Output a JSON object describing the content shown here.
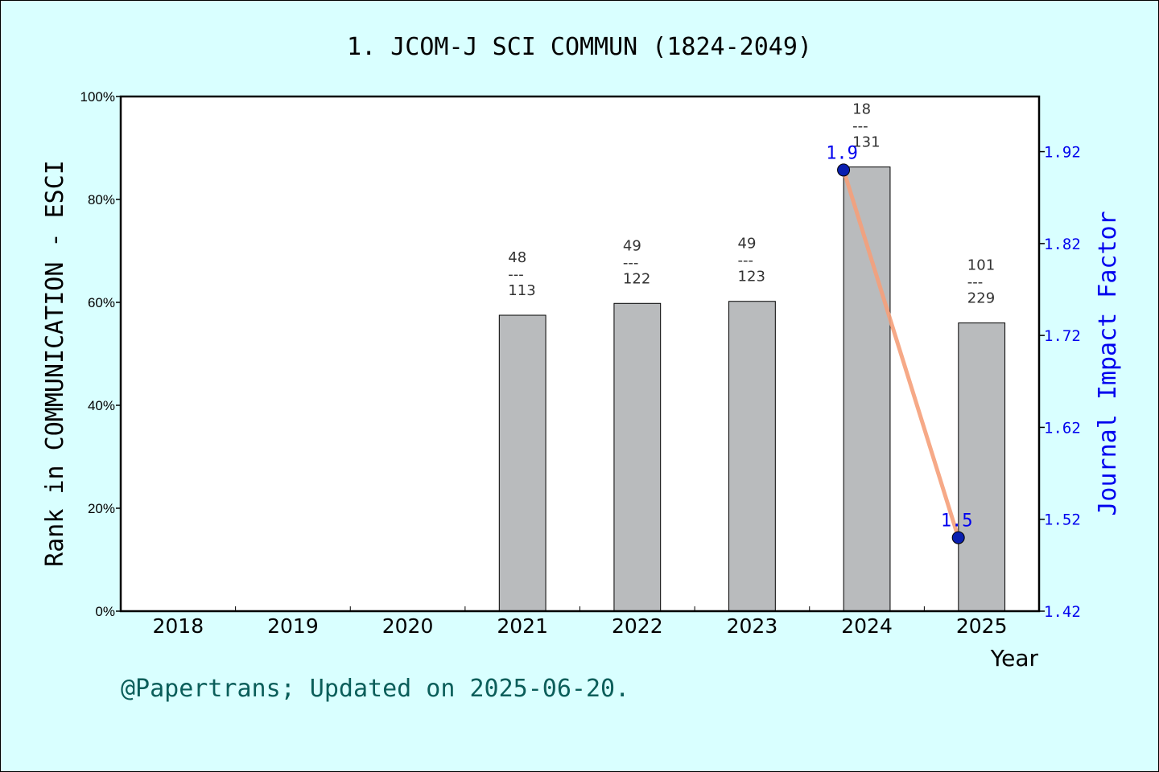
{
  "chart_data": {
    "type": "bar+line",
    "title": "1. JCOM-J SCI COMMUN (1824-2049)",
    "xlabel": "Year",
    "ylabel_left": "Rank in COMMUNICATION - ESCI",
    "ylabel_right": "Journal Impact Factor",
    "categories": [
      "2018",
      "2019",
      "2020",
      "2021",
      "2022",
      "2023",
      "2024",
      "2025"
    ],
    "left_axis": {
      "ylim": [
        0,
        100
      ],
      "ticks": [
        "0%",
        "20%",
        "40%",
        "60%",
        "80%",
        "100%"
      ],
      "tick_values": [
        0,
        20,
        40,
        60,
        80,
        100
      ]
    },
    "right_axis": {
      "ylim": [
        1.42,
        1.98
      ],
      "ticks": [
        "1.42",
        "1.52",
        "1.62",
        "1.72",
        "1.82",
        "1.92"
      ],
      "tick_values": [
        1.42,
        1.52,
        1.62,
        1.72,
        1.82,
        1.92
      ]
    },
    "bars": [
      {
        "year": "2021",
        "rank": "48",
        "total": "113",
        "percent": 57.5
      },
      {
        "year": "2022",
        "rank": "49",
        "total": "122",
        "percent": 59.8
      },
      {
        "year": "2023",
        "rank": "49",
        "total": "123",
        "percent": 60.2
      },
      {
        "year": "2024",
        "rank": "18",
        "total": "131",
        "percent": 86.3
      },
      {
        "year": "2025",
        "rank": "101",
        "total": "229",
        "percent": 56.0
      }
    ],
    "bar_label_separator": "---",
    "impact_factor": [
      {
        "year": "2024",
        "value": 1.9,
        "label": "1.9"
      },
      {
        "year": "2025",
        "value": 1.5,
        "label": "1.5"
      }
    ],
    "colors": {
      "background": "#d9ffff",
      "bar": "#b9bbbd",
      "line": "#f5a07a",
      "marker": "#0a1fb0",
      "right_axis": "#0000ee",
      "footer": "#0b5e5a"
    },
    "grid": false
  },
  "footer": "@Papertrans; Updated on 2025-06-20."
}
